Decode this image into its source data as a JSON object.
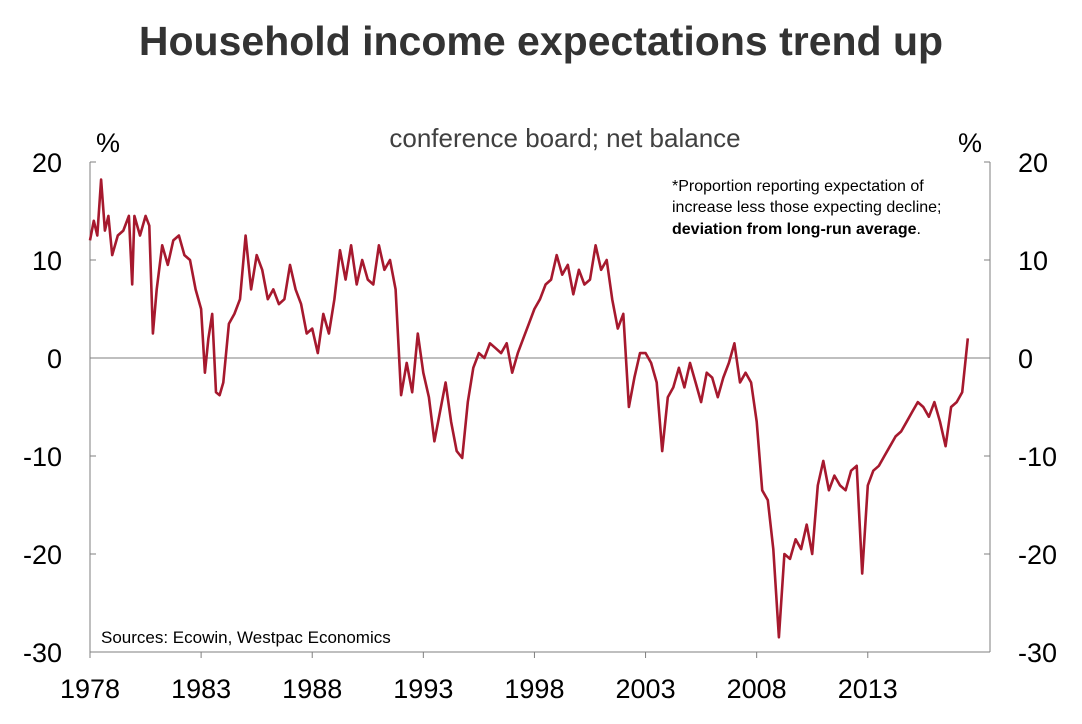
{
  "chart_data": {
    "type": "line",
    "title": "Household income expectations trend up",
    "subtitle": "conference board; net balance",
    "y_unit_left": "%",
    "y_unit_right": "%",
    "ylim": [
      -30,
      20
    ],
    "yticks": [
      20,
      10,
      0,
      -10,
      -20,
      -30
    ],
    "xlim": [
      1978,
      2018.5
    ],
    "xticks": [
      1978,
      1983,
      1988,
      1993,
      1998,
      2003,
      2008,
      2013
    ],
    "note_lines": [
      "*Proportion reporting expectation of",
      "increase less those expecting decline;"
    ],
    "note_bold": "deviation from long-run average",
    "note_end": ".",
    "source": "Sources: Ecowin, Westpac Economics",
    "series": [
      {
        "name": "Household income expectations",
        "color": "#a6192e",
        "points": [
          [
            1978.0,
            12.0
          ],
          [
            1978.17,
            14.0
          ],
          [
            1978.33,
            12.5
          ],
          [
            1978.5,
            18.2
          ],
          [
            1978.67,
            13.0
          ],
          [
            1978.83,
            14.5
          ],
          [
            1979.0,
            10.5
          ],
          [
            1979.25,
            12.5
          ],
          [
            1979.5,
            13.0
          ],
          [
            1979.75,
            14.5
          ],
          [
            1979.9,
            7.5
          ],
          [
            1980.0,
            14.5
          ],
          [
            1980.25,
            12.5
          ],
          [
            1980.5,
            14.5
          ],
          [
            1980.67,
            13.5
          ],
          [
            1980.83,
            2.5
          ],
          [
            1981.0,
            7.0
          ],
          [
            1981.25,
            11.5
          ],
          [
            1981.5,
            9.5
          ],
          [
            1981.75,
            12.0
          ],
          [
            1982.0,
            12.5
          ],
          [
            1982.25,
            10.5
          ],
          [
            1982.5,
            10.0
          ],
          [
            1982.75,
            7.0
          ],
          [
            1983.0,
            5.0
          ],
          [
            1983.17,
            -1.5
          ],
          [
            1983.33,
            2.0
          ],
          [
            1983.5,
            4.5
          ],
          [
            1983.67,
            -3.5
          ],
          [
            1983.83,
            -3.8
          ],
          [
            1984.0,
            -2.5
          ],
          [
            1984.25,
            3.5
          ],
          [
            1984.5,
            4.5
          ],
          [
            1984.75,
            6.0
          ],
          [
            1985.0,
            12.5
          ],
          [
            1985.25,
            7.0
          ],
          [
            1985.5,
            10.5
          ],
          [
            1985.75,
            9.0
          ],
          [
            1986.0,
            6.0
          ],
          [
            1986.25,
            7.0
          ],
          [
            1986.5,
            5.5
          ],
          [
            1986.75,
            6.0
          ],
          [
            1987.0,
            9.5
          ],
          [
            1987.25,
            7.0
          ],
          [
            1987.5,
            5.5
          ],
          [
            1987.75,
            2.5
          ],
          [
            1988.0,
            3.0
          ],
          [
            1988.25,
            0.5
          ],
          [
            1988.5,
            4.5
          ],
          [
            1988.75,
            2.5
          ],
          [
            1989.0,
            6.0
          ],
          [
            1989.25,
            11.0
          ],
          [
            1989.5,
            8.0
          ],
          [
            1989.75,
            11.5
          ],
          [
            1990.0,
            7.5
          ],
          [
            1990.25,
            10.0
          ],
          [
            1990.5,
            8.0
          ],
          [
            1990.75,
            7.5
          ],
          [
            1991.0,
            11.5
          ],
          [
            1991.25,
            9.0
          ],
          [
            1991.5,
            10.0
          ],
          [
            1991.75,
            7.0
          ],
          [
            1992.0,
            -3.8
          ],
          [
            1992.25,
            -0.5
          ],
          [
            1992.5,
            -3.5
          ],
          [
            1992.75,
            2.5
          ],
          [
            1993.0,
            -1.5
          ],
          [
            1993.25,
            -4.0
          ],
          [
            1993.5,
            -8.5
          ],
          [
            1993.75,
            -5.5
          ],
          [
            1994.0,
            -2.5
          ],
          [
            1994.25,
            -6.5
          ],
          [
            1994.5,
            -9.5
          ],
          [
            1994.75,
            -10.2
          ],
          [
            1995.0,
            -4.5
          ],
          [
            1995.25,
            -1.0
          ],
          [
            1995.5,
            0.5
          ],
          [
            1995.75,
            0.0
          ],
          [
            1996.0,
            1.5
          ],
          [
            1996.25,
            1.0
          ],
          [
            1996.5,
            0.5
          ],
          [
            1996.75,
            1.5
          ],
          [
            1997.0,
            -1.5
          ],
          [
            1997.25,
            0.5
          ],
          [
            1997.5,
            2.0
          ],
          [
            1997.75,
            3.5
          ],
          [
            1998.0,
            5.0
          ],
          [
            1998.25,
            6.0
          ],
          [
            1998.5,
            7.5
          ],
          [
            1998.75,
            8.0
          ],
          [
            1999.0,
            10.5
          ],
          [
            1999.25,
            8.5
          ],
          [
            1999.5,
            9.5
          ],
          [
            1999.75,
            6.5
          ],
          [
            2000.0,
            9.0
          ],
          [
            2000.25,
            7.5
          ],
          [
            2000.5,
            8.0
          ],
          [
            2000.75,
            11.5
          ],
          [
            2001.0,
            9.0
          ],
          [
            2001.25,
            10.0
          ],
          [
            2001.5,
            6.0
          ],
          [
            2001.75,
            3.0
          ],
          [
            2002.0,
            4.5
          ],
          [
            2002.25,
            -5.0
          ],
          [
            2002.5,
            -2.0
          ],
          [
            2002.75,
            0.5
          ],
          [
            2003.0,
            0.5
          ],
          [
            2003.25,
            -0.5
          ],
          [
            2003.5,
            -2.5
          ],
          [
            2003.75,
            -9.5
          ],
          [
            2004.0,
            -4.0
          ],
          [
            2004.25,
            -3.0
          ],
          [
            2004.5,
            -1.0
          ],
          [
            2004.75,
            -3.0
          ],
          [
            2005.0,
            -0.5
          ],
          [
            2005.25,
            -2.5
          ],
          [
            2005.5,
            -4.5
          ],
          [
            2005.75,
            -1.5
          ],
          [
            2006.0,
            -2.0
          ],
          [
            2006.25,
            -4.0
          ],
          [
            2006.5,
            -2.0
          ],
          [
            2006.75,
            -0.5
          ],
          [
            2007.0,
            1.5
          ],
          [
            2007.25,
            -2.5
          ],
          [
            2007.5,
            -1.5
          ],
          [
            2007.75,
            -2.5
          ],
          [
            2008.0,
            -6.5
          ],
          [
            2008.25,
            -13.5
          ],
          [
            2008.5,
            -14.5
          ],
          [
            2008.75,
            -19.5
          ],
          [
            2009.0,
            -28.5
          ],
          [
            2009.25,
            -20.0
          ],
          [
            2009.5,
            -20.5
          ],
          [
            2009.75,
            -18.5
          ],
          [
            2010.0,
            -19.5
          ],
          [
            2010.25,
            -17.0
          ],
          [
            2010.5,
            -20.0
          ],
          [
            2010.75,
            -13.0
          ],
          [
            2011.0,
            -10.5
          ],
          [
            2011.25,
            -13.5
          ],
          [
            2011.5,
            -12.0
          ],
          [
            2011.75,
            -13.0
          ],
          [
            2012.0,
            -13.5
          ],
          [
            2012.25,
            -11.5
          ],
          [
            2012.5,
            -11.0
          ],
          [
            2012.75,
            -22.0
          ],
          [
            2013.0,
            -13.0
          ],
          [
            2013.25,
            -11.5
          ],
          [
            2013.5,
            -11.0
          ],
          [
            2013.75,
            -10.0
          ],
          [
            2014.0,
            -9.0
          ],
          [
            2014.25,
            -8.0
          ],
          [
            2014.5,
            -7.5
          ],
          [
            2014.75,
            -6.5
          ],
          [
            2015.0,
            -5.5
          ],
          [
            2015.25,
            -4.5
          ],
          [
            2015.5,
            -5.0
          ],
          [
            2015.75,
            -6.0
          ],
          [
            2016.0,
            -4.5
          ],
          [
            2016.25,
            -6.5
          ],
          [
            2016.5,
            -9.0
          ],
          [
            2016.75,
            -5.0
          ],
          [
            2017.0,
            -4.5
          ],
          [
            2017.25,
            -3.5
          ],
          [
            2017.5,
            2.0
          ]
        ]
      }
    ]
  }
}
